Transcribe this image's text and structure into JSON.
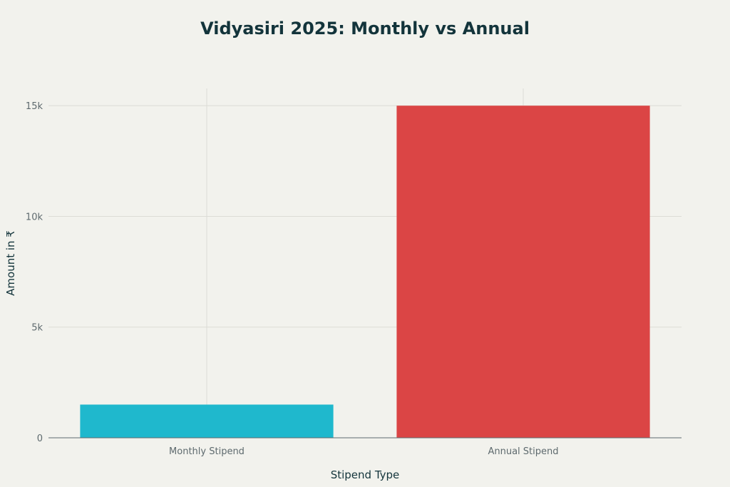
{
  "chart_data": {
    "type": "bar",
    "title": "Vidyasiri 2025: Monthly vs Annual",
    "xlabel": "Stipend Type",
    "ylabel": "Amount in ₹",
    "categories": [
      "Monthly Stipend",
      "Annual Stipend"
    ],
    "values": [
      1500,
      15000
    ],
    "colors": [
      "#1fb8cd",
      "#db4545"
    ],
    "ylim": [
      0,
      15780
    ],
    "yticks": [
      0,
      5000,
      10000,
      15000
    ],
    "ytick_labels": [
      "0",
      "5k",
      "10k",
      "15k"
    ],
    "grid": true,
    "legend": "none"
  }
}
